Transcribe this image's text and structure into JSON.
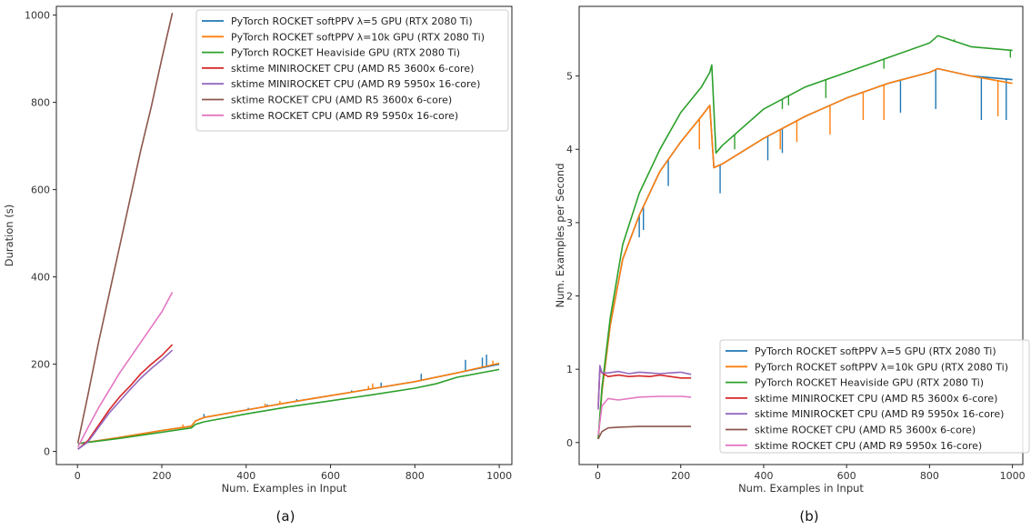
{
  "chart_data": [
    {
      "type": "line",
      "panel_tag": "(a)",
      "xlabel": "Num. Examples in Input",
      "ylabel": "Duration (s)",
      "xlim": [
        -50,
        1030
      ],
      "ylim": [
        -30,
        1020
      ],
      "xticks": [
        0,
        200,
        400,
        600,
        800,
        1000
      ],
      "yticks": [
        0,
        200,
        400,
        600,
        800,
        1000
      ],
      "grid": false,
      "legend": "top-right",
      "series": [
        {
          "name": "PyTorch ROCKET softPPV λ=5 GPU (RTX 2080 Ti)",
          "color": "#1f77b4",
          "x": [
            1,
            100,
            200,
            270,
            280,
            300,
            400,
            500,
            600,
            700,
            800,
            900,
            1000
          ],
          "y": [
            18,
            32,
            48,
            58,
            70,
            78,
            95,
            112,
            128,
            144,
            160,
            180,
            200
          ],
          "spikes": [
            [
              130,
              38
            ],
            [
              175,
              45
            ],
            [
              300,
              86
            ],
            [
              405,
              100
            ],
            [
              450,
              108
            ],
            [
              520,
              120
            ],
            [
              650,
              140
            ],
            [
              720,
              158
            ],
            [
              815,
              178
            ],
            [
              920,
              210
            ],
            [
              960,
              215
            ],
            [
              970,
              222
            ]
          ]
        },
        {
          "name": "PyTorch ROCKET softPPV λ=10k GPU (RTX 2080 Ti)",
          "color": "#ff7f0e",
          "x": [
            1,
            100,
            200,
            270,
            280,
            300,
            400,
            500,
            600,
            700,
            800,
            900,
            1000
          ],
          "y": [
            18,
            32,
            48,
            58,
            70,
            78,
            95,
            112,
            128,
            144,
            160,
            180,
            202
          ],
          "spikes": [
            [
              250,
              62
            ],
            [
              445,
              110
            ],
            [
              480,
              116
            ],
            [
              560,
              124
            ],
            [
              690,
              150
            ],
            [
              700,
              156
            ],
            [
              985,
              208
            ]
          ]
        },
        {
          "name": "PyTorch ROCKET Heaviside GPU (RTX 2080 Ti)",
          "color": "#2ca02c",
          "x": [
            1,
            100,
            200,
            270,
            280,
            300,
            400,
            500,
            600,
            700,
            800,
            850,
            900,
            1000
          ],
          "y": [
            18,
            30,
            44,
            54,
            62,
            68,
            86,
            102,
            116,
            130,
            145,
            155,
            170,
            188
          ],
          "spikes": []
        },
        {
          "name": "sktime MINIROCKET CPU (AMD R5 3600x 6-core)",
          "color": "#d62728",
          "x": [
            1,
            25,
            50,
            75,
            100,
            125,
            150,
            175,
            200,
            225
          ],
          "y": [
            5,
            25,
            60,
            95,
            125,
            150,
            178,
            200,
            220,
            245
          ],
          "spikes": []
        },
        {
          "name": "sktime MINIROCKET CPU (AMD R9 5950x 16-core)",
          "color": "#9467bd",
          "x": [
            1,
            25,
            50,
            75,
            100,
            125,
            150,
            175,
            200,
            225
          ],
          "y": [
            5,
            22,
            55,
            88,
            115,
            142,
            168,
            190,
            210,
            232
          ],
          "spikes": []
        },
        {
          "name": "sktime ROCKET CPU (AMD R5 3600x 6-core)",
          "color": "#8c564b",
          "x": [
            1,
            25,
            50,
            75,
            100,
            125,
            150,
            175,
            200,
            225
          ],
          "y": [
            20,
            130,
            250,
            360,
            470,
            580,
            690,
            790,
            900,
            1005
          ],
          "spikes": []
        },
        {
          "name": "sktime ROCKET CPU (AMD R9 5950x 16-core)",
          "color": "#e377c2",
          "x": [
            1,
            25,
            50,
            75,
            100,
            125,
            150,
            175,
            200,
            225
          ],
          "y": [
            10,
            55,
            100,
            140,
            180,
            215,
            250,
            285,
            320,
            365
          ],
          "spikes": []
        }
      ]
    },
    {
      "type": "line",
      "panel_tag": "(b)",
      "xlabel": "Num. Examples in Input",
      "ylabel": "Num. Examples per Second",
      "xlim": [
        -45,
        1025
      ],
      "ylim": [
        -0.3,
        5.95
      ],
      "xticks": [
        0,
        200,
        400,
        600,
        800,
        1000
      ],
      "yticks": [
        0,
        1,
        2,
        3,
        4,
        5
      ],
      "grid": false,
      "legend": "bottom-right",
      "series": [
        {
          "name": "PyTorch ROCKET softPPV λ=5 GPU (RTX 2080 Ti)",
          "color": "#1f77b4",
          "x": [
            1,
            10,
            30,
            60,
            100,
            150,
            200,
            250,
            270,
            280,
            300,
            400,
            500,
            600,
            700,
            800,
            820,
            900,
            1000
          ],
          "y": [
            0.05,
            0.7,
            1.6,
            2.5,
            3.1,
            3.7,
            4.1,
            4.45,
            4.6,
            3.75,
            3.8,
            4.15,
            4.45,
            4.7,
            4.9,
            5.05,
            5.1,
            5.0,
            4.95
          ],
          "spikes": [
            [
              100,
              2.8
            ],
            [
              110,
              2.9
            ],
            [
              170,
              3.5
            ],
            [
              295,
              3.4
            ],
            [
              410,
              3.85
            ],
            [
              445,
              3.95
            ],
            [
              730,
              4.5
            ],
            [
              815,
              4.55
            ],
            [
              925,
              4.4
            ],
            [
              985,
              4.4
            ]
          ]
        },
        {
          "name": "PyTorch ROCKET softPPV λ=10k GPU (RTX 2080 Ti)",
          "color": "#ff7f0e",
          "x": [
            1,
            10,
            30,
            60,
            100,
            150,
            200,
            250,
            270,
            280,
            300,
            400,
            500,
            600,
            700,
            800,
            820,
            900,
            1000
          ],
          "y": [
            0.05,
            0.7,
            1.6,
            2.5,
            3.1,
            3.7,
            4.1,
            4.45,
            4.6,
            3.75,
            3.8,
            4.15,
            4.45,
            4.7,
            4.9,
            5.05,
            5.1,
            5.0,
            4.9
          ],
          "spikes": [
            [
              245,
              4.0
            ],
            [
              440,
              4.0
            ],
            [
              480,
              4.1
            ],
            [
              560,
              4.2
            ],
            [
              640,
              4.4
            ],
            [
              690,
              4.4
            ],
            [
              965,
              4.45
            ]
          ]
        },
        {
          "name": "PyTorch ROCKET Heaviside GPU (RTX 2080 Ti)",
          "color": "#2ca02c",
          "x": [
            1,
            10,
            30,
            60,
            100,
            150,
            200,
            250,
            270,
            275,
            285,
            300,
            400,
            500,
            600,
            700,
            800,
            820,
            900,
            1000
          ],
          "y": [
            0.05,
            0.75,
            1.7,
            2.7,
            3.4,
            4.0,
            4.5,
            4.85,
            5.05,
            5.15,
            3.95,
            4.05,
            4.55,
            4.85,
            5.05,
            5.25,
            5.45,
            5.55,
            5.4,
            5.35
          ],
          "spikes": [
            [
              330,
              4.0
            ],
            [
              445,
              4.55
            ],
            [
              460,
              4.6
            ],
            [
              550,
              4.7
            ],
            [
              690,
              5.1
            ],
            [
              860,
              5.5
            ],
            [
              995,
              5.25
            ]
          ]
        },
        {
          "name": "sktime MINIROCKET CPU (AMD R5 3600x 6-core)",
          "color": "#d62728",
          "x": [
            1,
            5,
            10,
            25,
            50,
            75,
            100,
            125,
            150,
            175,
            200,
            225
          ],
          "y": [
            0.5,
            1.0,
            0.95,
            0.9,
            0.92,
            0.9,
            0.91,
            0.9,
            0.92,
            0.9,
            0.88,
            0.88
          ],
          "spikes": []
        },
        {
          "name": "sktime MINIROCKET CPU (AMD R9 5950x 16-core)",
          "color": "#9467bd",
          "x": [
            1,
            5,
            10,
            25,
            50,
            75,
            100,
            125,
            150,
            175,
            200,
            225
          ],
          "y": [
            0.45,
            1.05,
            0.95,
            0.95,
            0.97,
            0.94,
            0.96,
            0.95,
            0.94,
            0.95,
            0.96,
            0.93
          ],
          "spikes": []
        },
        {
          "name": "sktime ROCKET CPU (AMD R5 3600x 6-core)",
          "color": "#8c564b",
          "x": [
            1,
            10,
            25,
            50,
            100,
            150,
            200,
            225
          ],
          "y": [
            0.05,
            0.15,
            0.2,
            0.21,
            0.22,
            0.22,
            0.22,
            0.22
          ],
          "spikes": []
        },
        {
          "name": "sktime ROCKET CPU (AMD R9 5950x 16-core)",
          "color": "#e377c2",
          "x": [
            1,
            10,
            25,
            50,
            100,
            150,
            200,
            225
          ],
          "y": [
            0.1,
            0.5,
            0.6,
            0.58,
            0.62,
            0.63,
            0.63,
            0.62
          ],
          "spikes": []
        }
      ]
    }
  ]
}
